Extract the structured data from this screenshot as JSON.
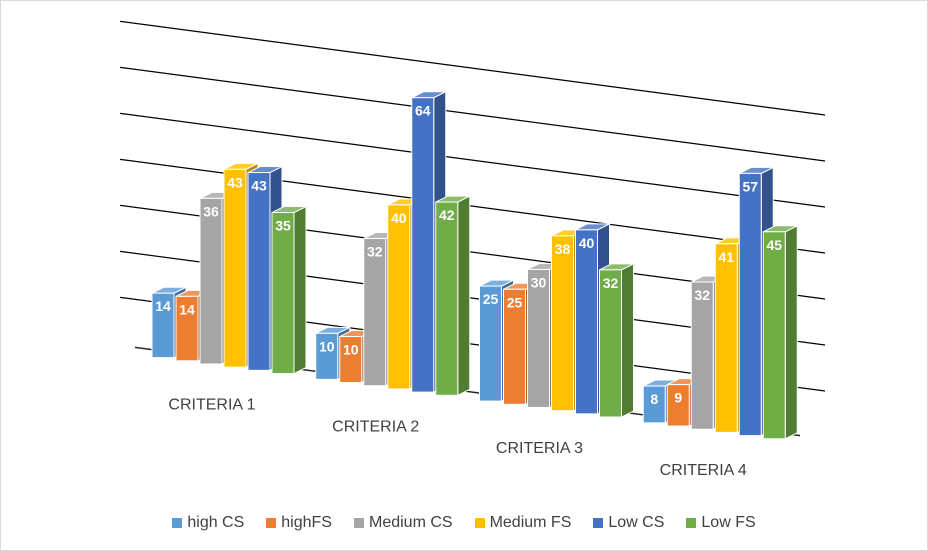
{
  "chart_data": {
    "type": "bar",
    "subtype": "3d-clustered-column",
    "title": "",
    "xlabel": "",
    "ylabel": "",
    "ylim": [
      0,
      70
    ],
    "gridlines": true,
    "legend_position": "bottom",
    "categories": [
      "CRITERIA 1",
      "CRITERIA 2",
      "CRITERIA 3",
      "CRITERIA 4"
    ],
    "series": [
      {
        "name": "high CS",
        "color": "#5B9BD5",
        "values": [
          14,
          10,
          25,
          8
        ]
      },
      {
        "name": "highFS",
        "color": "#ED7D31",
        "values": [
          14,
          10,
          25,
          9
        ]
      },
      {
        "name": "Medium CS",
        "color": "#A5A5A5",
        "values": [
          36,
          32,
          30,
          32
        ]
      },
      {
        "name": "Medium FS",
        "color": "#FFC000",
        "values": [
          43,
          40,
          38,
          41
        ]
      },
      {
        "name": "Low CS",
        "color": "#4472C4",
        "values": [
          43,
          64,
          40,
          57
        ]
      },
      {
        "name": "Low FS",
        "color": "#70AD47",
        "values": [
          35,
          42,
          32,
          45
        ]
      }
    ]
  }
}
